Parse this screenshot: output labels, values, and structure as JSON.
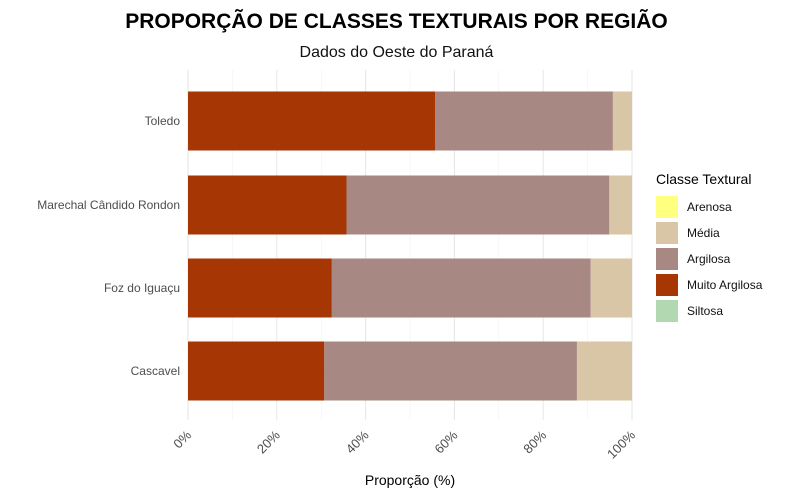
{
  "title": "PROPORÇÃO DE CLASSES TEXTURAIS POR REGIÃO",
  "subtitle": "Dados do Oeste do Paraná",
  "legend": {
    "title": "Classe Textural",
    "items": [
      {
        "label": "Arenosa",
        "color": "#ffff80"
      },
      {
        "label": "Média",
        "color": "#d8c6a6"
      },
      {
        "label": "Argilosa",
        "color": "#a88883"
      },
      {
        "label": "Muito Argilosa",
        "color": "#a63603"
      },
      {
        "label": "Siltosa",
        "color": "#b2d8b2"
      }
    ]
  },
  "chart_data": {
    "type": "bar",
    "orientation": "horizontal",
    "stacked": true,
    "title": "PROPORÇÃO DE CLASSES TEXTURAIS POR REGIÃO",
    "subtitle": "Dados do Oeste do Paraná",
    "xlabel": "Proporção (%)",
    "ylabel": "",
    "xlim": [
      0,
      100
    ],
    "x_ticks": [
      "0%",
      "20%",
      "40%",
      "60%",
      "80%",
      "100%"
    ],
    "grid": true,
    "legend_position": "right",
    "categories": [
      "Toledo",
      "Marechal Cândido Rondon",
      "Foz do Iguaçu",
      "Cascavel"
    ],
    "series": [
      {
        "name": "Muito Argilosa",
        "color": "#a63603",
        "values": [
          55.7,
          35.7,
          32.4,
          30.7
        ]
      },
      {
        "name": "Argilosa",
        "color": "#a88883",
        "values": [
          40.0,
          59.2,
          58.3,
          56.9
        ]
      },
      {
        "name": "Média",
        "color": "#d8c6a6",
        "values": [
          4.3,
          5.1,
          9.3,
          12.4
        ]
      },
      {
        "name": "Arenosa",
        "color": "#ffff80",
        "values": [
          0,
          0,
          0,
          0
        ]
      },
      {
        "name": "Siltosa",
        "color": "#b2d8b2",
        "values": [
          0,
          0,
          0,
          0
        ]
      }
    ]
  }
}
